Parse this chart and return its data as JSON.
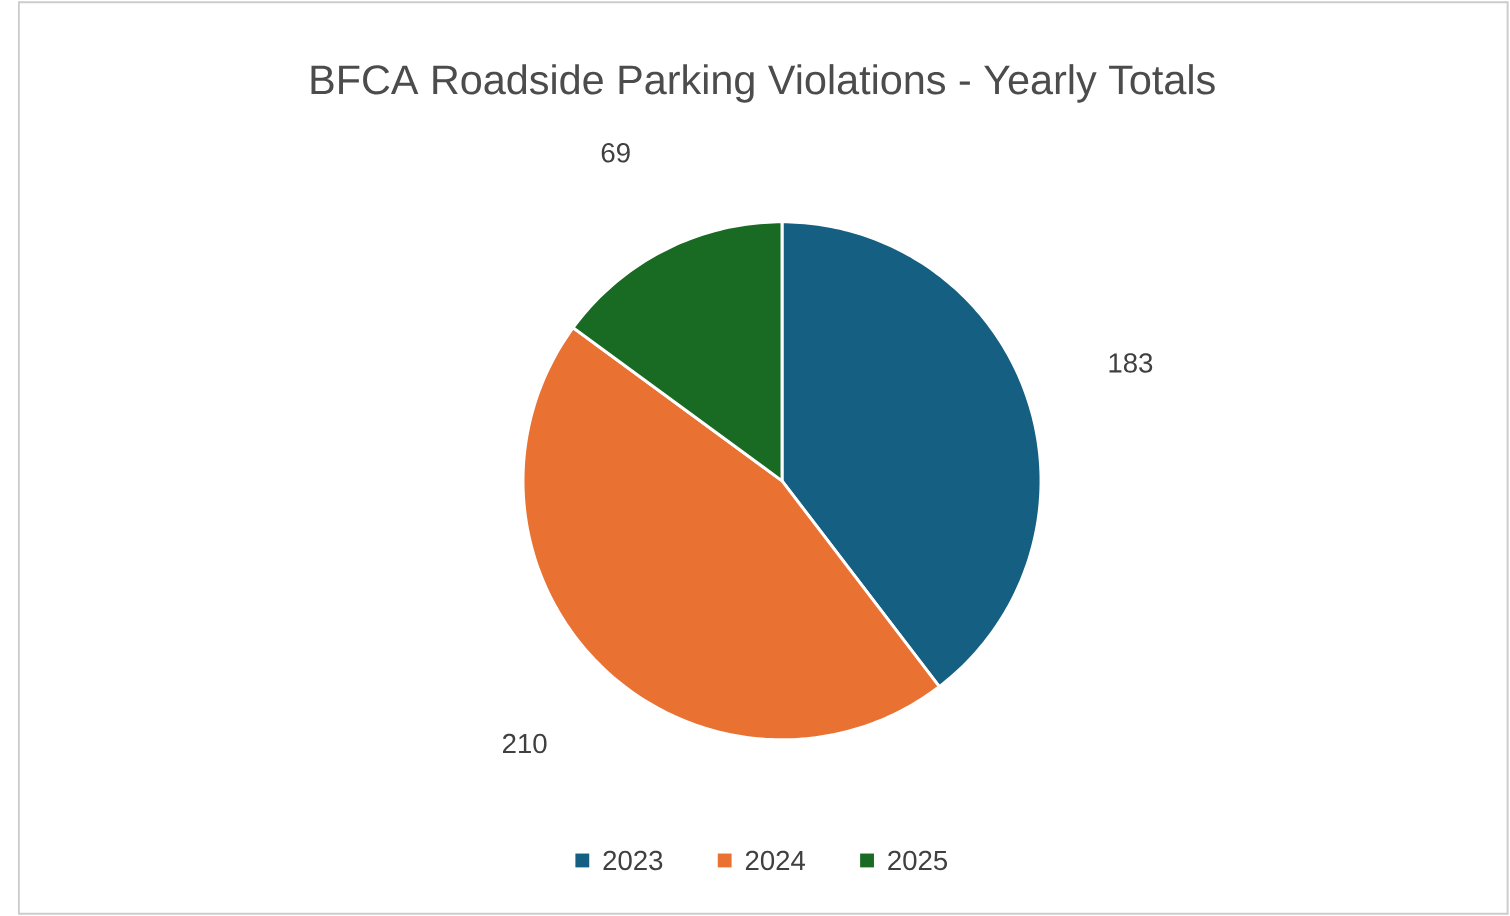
{
  "chart_data": {
    "type": "pie",
    "title": "BFCA Roadside Parking Violations - Yearly Totals",
    "categories": [
      "2023",
      "2024",
      "2025"
    ],
    "values": [
      183,
      210,
      69
    ],
    "colors": [
      "#156082",
      "#e97132",
      "#196b24"
    ],
    "data_labels": true,
    "legend": "bottom"
  }
}
